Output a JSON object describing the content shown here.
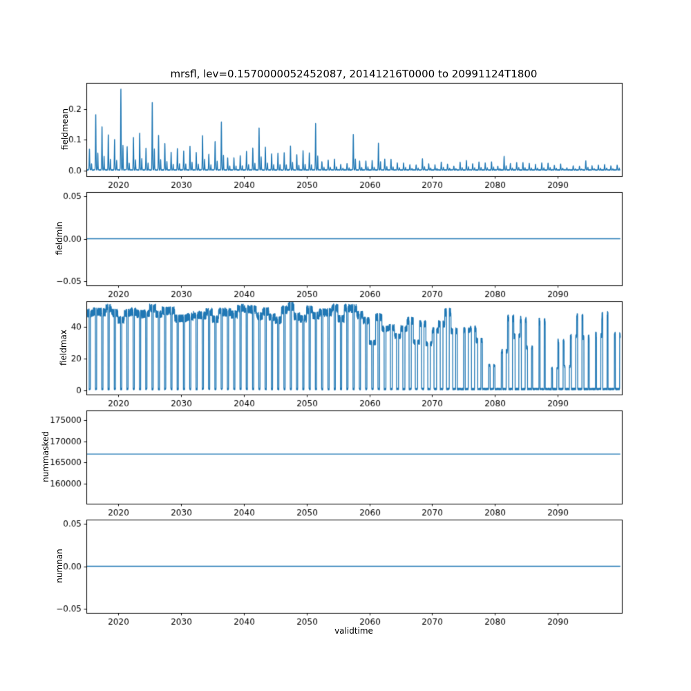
{
  "figure": {
    "title": "mrsfl, lev=0.1570000052452087, 20141216T0000 to 20991124T1800",
    "xlabel": "validtime",
    "x_range": [
      2014.96,
      2100.2
    ],
    "xticks": [
      2020,
      2030,
      2040,
      2050,
      2060,
      2070,
      2080,
      2090
    ],
    "line_color": "#1f77b4",
    "background": "#ffffff"
  },
  "chart_data": [
    {
      "type": "line",
      "ylabel": "fieldmean",
      "ylim": [
        -0.018,
        0.285
      ],
      "ytick_values": [
        0.0,
        0.1,
        0.2
      ],
      "ytick_labels": [
        "0.0",
        "0.1",
        "0.2"
      ],
      "x": "validtime 2015-2099, 6-hourly",
      "series": [
        {
          "name": "fieldmean",
          "pattern": "annual-spikes-decaying",
          "baseline": 0.0,
          "envelope_start": 0.17,
          "envelope_end": 0.01,
          "decay_rate": 0.033,
          "peak_max": 0.27,
          "notable_peaks": {
            "2020": 0.27,
            "2025": 0.225,
            "2033": 0.115,
            "2036": 0.16,
            "2042": 0.14,
            "2047": 0.08,
            "2051": 0.155,
            "2057": 0.12,
            "2061": 0.09,
            "2081": 0.045,
            "2094": 0.03
          }
        }
      ]
    },
    {
      "type": "line",
      "ylabel": "fieldmin",
      "ylim": [
        -0.055,
        0.055
      ],
      "ytick_values": [
        -0.05,
        0.0,
        0.05
      ],
      "ytick_labels": [
        "−0.05",
        "0.00",
        "0.05"
      ],
      "series": [
        {
          "name": "fieldmin",
          "pattern": "constant",
          "value": 0.0
        }
      ]
    },
    {
      "type": "line",
      "ylabel": "fieldmax",
      "ylim": [
        -2.6,
        56.1
      ],
      "ytick_values": [
        0,
        20,
        40
      ],
      "ytick_labels": [
        "0",
        "20",
        "40"
      ],
      "series": [
        {
          "name": "fieldmax",
          "pattern": "seasonal-oscillation",
          "high_typical": 52,
          "high_range": [
            46,
            56
          ],
          "low": 0,
          "sparse_after": 2058,
          "late_high_range": [
            12,
            50
          ]
        }
      ]
    },
    {
      "type": "line",
      "ylabel": "nummasked",
      "ylim": [
        155300,
        177300
      ],
      "ytick_values": [
        160000,
        165000,
        170000,
        175000
      ],
      "ytick_labels": [
        "160000",
        "165000",
        "170000",
        "175000"
      ],
      "series": [
        {
          "name": "nummasked",
          "pattern": "constant",
          "value": 167000
        }
      ]
    },
    {
      "type": "line",
      "ylabel": "numnan",
      "ylim": [
        -0.055,
        0.055
      ],
      "ytick_values": [
        -0.05,
        0.0,
        0.05
      ],
      "ytick_labels": [
        "−0.05",
        "0.00",
        "0.05"
      ],
      "series": [
        {
          "name": "numnan",
          "pattern": "constant",
          "value": 0.0
        }
      ]
    }
  ]
}
